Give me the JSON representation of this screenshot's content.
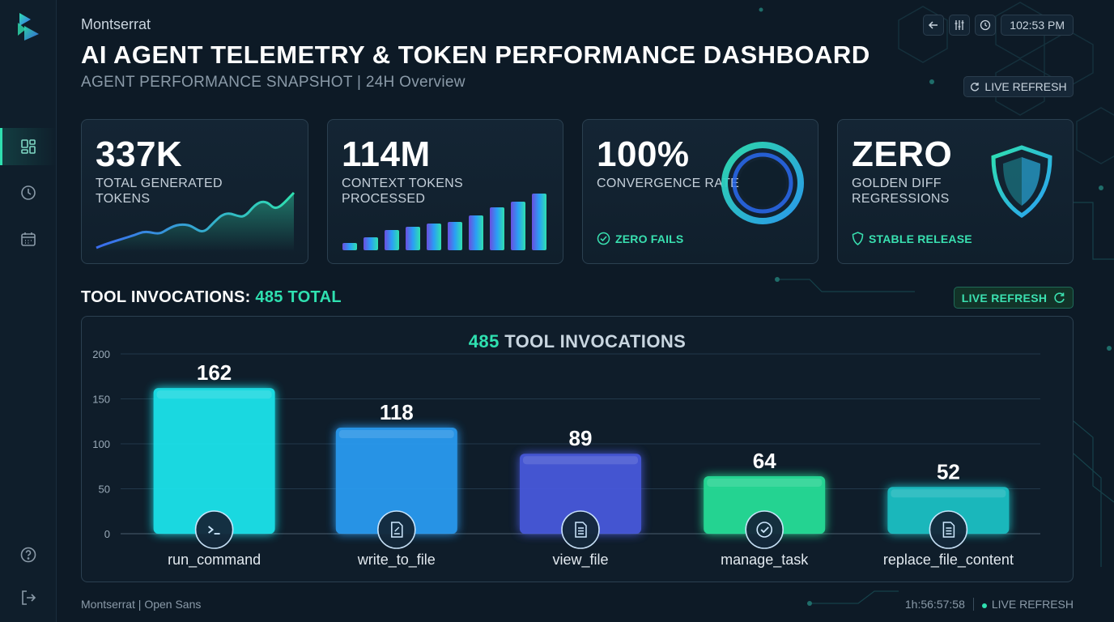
{
  "app": {
    "brand_label": "Montserrat",
    "title": "AI AGENT TELEMETRY & TOKEN PERFORMANCE DASHBOARD",
    "subtitle": "AGENT PERFORMANCE SNAPSHOT | 24H Overview"
  },
  "top_controls": {
    "time": "102:53 PM",
    "icons": [
      "back-arrow-icon",
      "equalizer-icon",
      "clock-icon"
    ],
    "live_refresh": "LIVE REFRESH"
  },
  "sidebar": {
    "items": [
      {
        "icon": "dashboard-icon",
        "active": true
      },
      {
        "icon": "history-clock-icon",
        "active": false
      },
      {
        "icon": "calendar-icon",
        "active": false
      }
    ],
    "bottom": [
      {
        "icon": "help-icon"
      },
      {
        "icon": "logout-icon"
      }
    ]
  },
  "kpis": [
    {
      "value": "337K",
      "label": "TOTAL GENERATED TOKENS",
      "visual": "area-line"
    },
    {
      "value": "114M",
      "label": "CONTEXT TOKENS PROCESSED",
      "visual": "mini-bars"
    },
    {
      "value": "100%",
      "label": "CONVERGENCE RATE",
      "visual": "ring",
      "footer": "ZERO FAILS",
      "footer_icon": "check-circle-icon"
    },
    {
      "value": "ZERO",
      "label": "GOLDEN DIFF REGRESSIONS",
      "visual": "shield",
      "footer": "STABLE RELEASE",
      "footer_icon": "shield-icon"
    }
  ],
  "section": {
    "title_prefix": "TOOL INVOCATIONS: ",
    "title_accent": "485 TOTAL",
    "live_refresh": "LIVE REFRESH"
  },
  "chart_data": {
    "type": "bar",
    "title_accent": "485",
    "title_rest": " TOOL INVOCATIONS",
    "categories": [
      "run_command",
      "write_to_file",
      "view_file",
      "manage_task",
      "replace_file_content"
    ],
    "values": [
      162,
      118,
      89,
      64,
      52
    ],
    "data_labels": [
      "162",
      "118",
      "89",
      "64",
      "52"
    ],
    "icons": [
      "terminal-icon",
      "file-edit-icon",
      "file-text-icon",
      "check-circle-icon",
      "file-text-icon"
    ],
    "colors": [
      "#1ee8f0",
      "#2a9ef5",
      "#4a5ae0",
      "#28e39a",
      "#1ac5c8"
    ],
    "ylim": [
      0,
      200
    ],
    "yticks": [
      "0",
      "50",
      "100",
      "150",
      "200"
    ],
    "grid": true
  },
  "footer": {
    "fonts_note": "Montserrat | Open Sans",
    "clock": "1h:56:57:58",
    "live_refresh": "LIVE REFRESH"
  },
  "colors": {
    "accent": "#2fe0b0",
    "background": "#0d1a26",
    "panel_border": "#2b4050"
  }
}
